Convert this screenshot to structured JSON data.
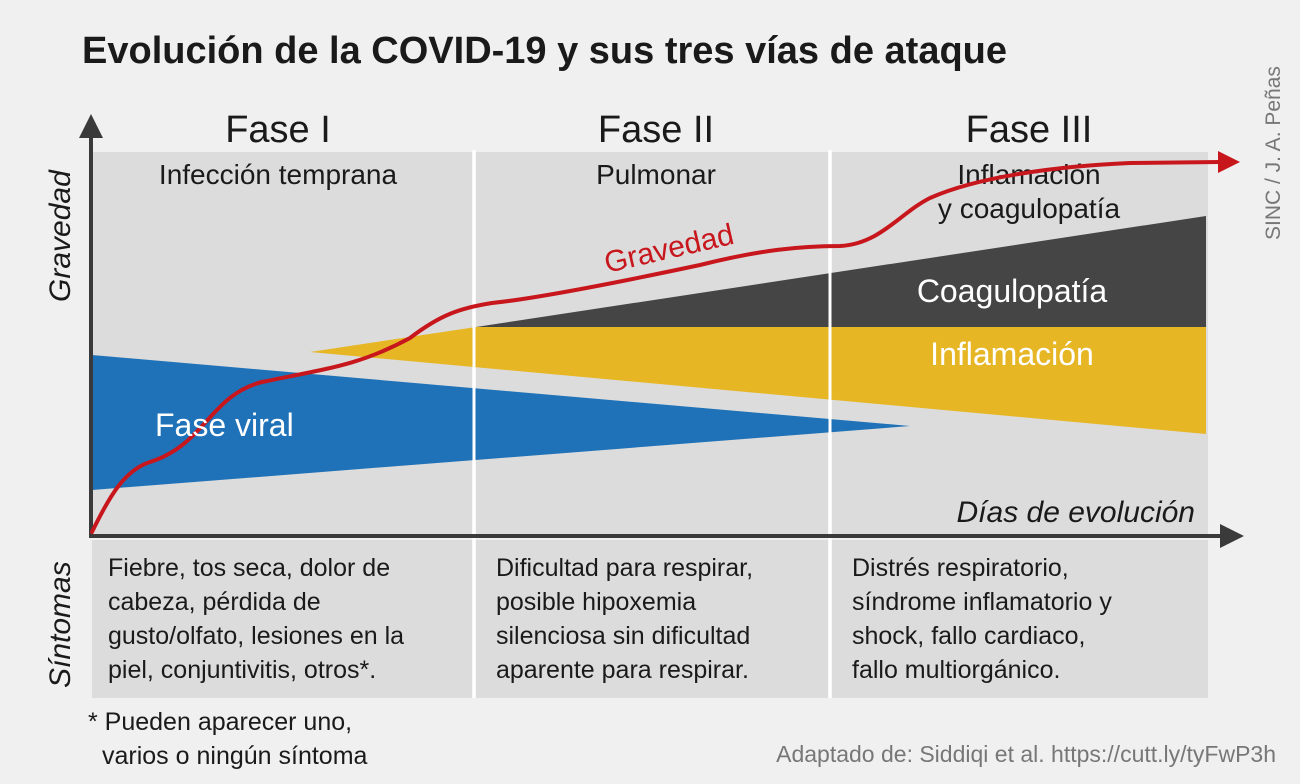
{
  "title": "Evolución de la COVID-19 y sus tres vías de ataque",
  "credit": "SINC / J. A. Peñas",
  "y_axis_label": "Gravedad",
  "x_axis_label": "Días de evolución",
  "symptoms_label": "Síntomas",
  "phases": [
    {
      "name": "Fase I",
      "subtitle": [
        "Infección temprana"
      ],
      "symptoms": [
        "Fiebre, tos seca, dolor de",
        "cabeza, pérdida de",
        "gusto/olfato, lesiones en la",
        "piel, conjuntivitis, otros*."
      ]
    },
    {
      "name": "Fase II",
      "subtitle": [
        "Pulmonar"
      ],
      "symptoms": [
        "Dificultad para respirar,",
        "posible hipoxemia",
        "silenciosa sin dificultad",
        "aparente para respirar."
      ]
    },
    {
      "name": "Fase III",
      "subtitle": [
        "Inflamación",
        "y coagulopatía"
      ],
      "symptoms": [
        "Distrés respiratorio,",
        "síndrome inflamatorio y",
        "shock, fallo cardiaco,",
        "fallo multiorgánico."
      ]
    }
  ],
  "bands": {
    "viral": "Fase viral",
    "inflammation": "Inflamación",
    "coagulopathy": "Coagulopatía",
    "severity_curve": "Gravedad"
  },
  "colors": {
    "viral": "#1f72b8",
    "inflammation": "#e7b625",
    "coagulopathy": "#454545",
    "severity": "#c8161d",
    "panel": "#dcdcdc",
    "background": "#f0f0f0"
  },
  "footnote": [
    "* Pueden aparecer uno,",
    "varios o ningún síntoma"
  ],
  "source": "Adaptado de: Siddiqi et al. https://cutt.ly/tyFwP3h"
}
